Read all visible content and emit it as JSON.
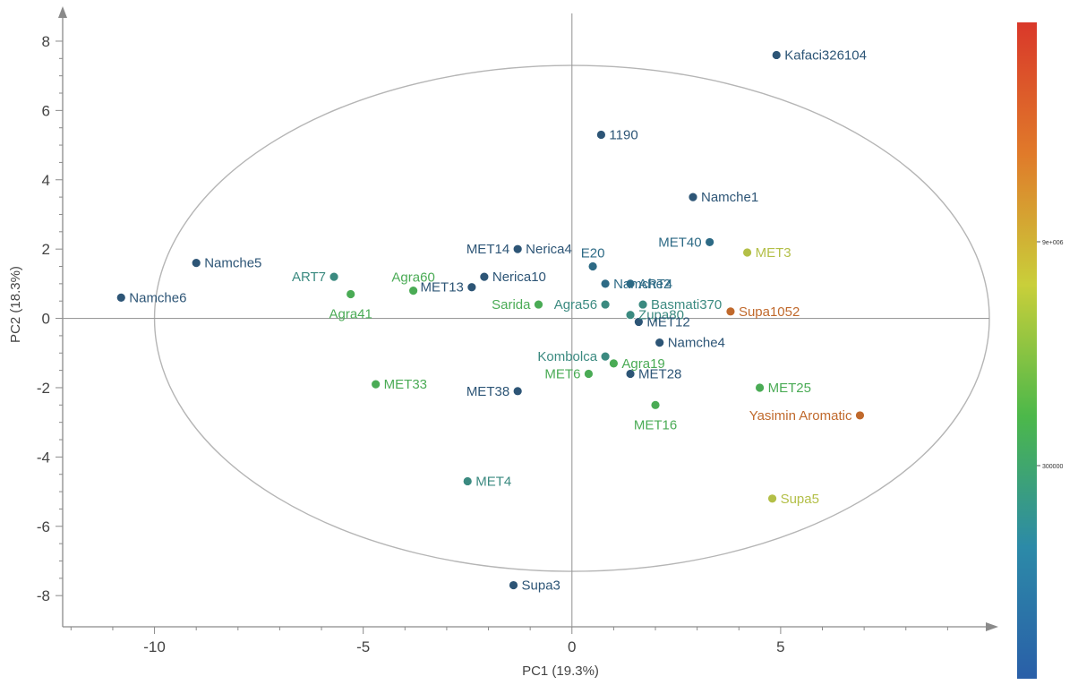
{
  "chart_data": {
    "type": "scatter",
    "xlabel": "PC1 (19.3%)",
    "ylabel": "PC2 (18.3%)",
    "xlim": [
      -12.2,
      10
    ],
    "ylim": [
      -8.9,
      8.8
    ],
    "xticks": [
      -10,
      -5,
      0,
      5
    ],
    "yticks": [
      -8,
      -6,
      -4,
      -2,
      0,
      2,
      4,
      6,
      8
    ],
    "x_tick_labels": [
      "-10",
      "-5",
      "0",
      "5"
    ],
    "y_tick_labels": [
      "-8",
      "-6",
      "-4",
      "-2",
      "0",
      "2",
      "4",
      "6",
      "8"
    ],
    "reference_lines": {
      "x": 0,
      "y": 0
    },
    "ellipse": {
      "center": [
        0,
        0
      ],
      "rx": 10.0,
      "ry": 7.3
    },
    "colorbar": {
      "colors_top_to_bottom": [
        "#d9382a",
        "#e07a2a",
        "#c9cf3a",
        "#4cb84a",
        "#2c8aa8",
        "#2a5fa8"
      ],
      "tick_labels": [
        "9e+006",
        "300000"
      ]
    },
    "points": [
      {
        "label": "Kafaci326104",
        "x": 4.9,
        "y": 7.6,
        "color": "#2d5576"
      },
      {
        "label": "1190",
        "x": 0.7,
        "y": 5.3,
        "color": "#2d5576"
      },
      {
        "label": "Namche1",
        "x": 2.9,
        "y": 3.5,
        "color": "#2d5576"
      },
      {
        "label": "MET40",
        "x": 3.3,
        "y": 2.2,
        "color": "#2d6a85"
      },
      {
        "label": "MET3",
        "x": 4.2,
        "y": 1.9,
        "color": "#b3bf47"
      },
      {
        "label": "Namche5",
        "x": -9.0,
        "y": 1.6,
        "color": "#2d5576"
      },
      {
        "label": "Namche6",
        "x": -10.8,
        "y": 0.6,
        "color": "#2d5576"
      },
      {
        "label": "ART7",
        "x": -5.7,
        "y": 1.2,
        "color": "#3b8a80"
      },
      {
        "label": "Agra60",
        "x": -3.8,
        "y": 0.8,
        "color": "#4aab55"
      },
      {
        "label": "Agra41",
        "x": -5.3,
        "y": 0.7,
        "color": "#4aab55"
      },
      {
        "label": "MET14",
        "x": -1.3,
        "y": 2.0,
        "color": "#2d5576"
      },
      {
        "label": "Nerica4",
        "x": -1.3,
        "y": 2.0,
        "color": "#2d5576"
      },
      {
        "label": "Nerica10",
        "x": -2.1,
        "y": 1.2,
        "color": "#2d5576"
      },
      {
        "label": "MET13",
        "x": -2.4,
        "y": 0.9,
        "color": "#2d5576"
      },
      {
        "label": "E20",
        "x": 0.5,
        "y": 1.5,
        "color": "#2d6a85"
      },
      {
        "label": "Namche2",
        "x": 0.8,
        "y": 1.0,
        "color": "#2d6a85"
      },
      {
        "label": "ART4",
        "x": 1.4,
        "y": 1.0,
        "color": "#2d6a85"
      },
      {
        "label": "Basmati370",
        "x": 1.7,
        "y": 0.4,
        "color": "#3b8a80"
      },
      {
        "label": "Sarida",
        "x": -0.8,
        "y": 0.4,
        "color": "#4aab55"
      },
      {
        "label": "Agra56",
        "x": 0.8,
        "y": 0.4,
        "color": "#3b8a80"
      },
      {
        "label": "Zupa80",
        "x": 1.4,
        "y": 0.1,
        "color": "#3b8a80"
      },
      {
        "label": "MET12",
        "x": 1.6,
        "y": -0.1,
        "color": "#2d5576"
      },
      {
        "label": "Supa1052",
        "x": 3.8,
        "y": 0.2,
        "color": "#c0692c"
      },
      {
        "label": "Namche4",
        "x": 2.1,
        "y": -0.7,
        "color": "#2d5576"
      },
      {
        "label": "Kombolca",
        "x": 0.8,
        "y": -1.1,
        "color": "#3b8a80"
      },
      {
        "label": "MET28",
        "x": 1.4,
        "y": -1.6,
        "color": "#2d5576"
      },
      {
        "label": "Agra19",
        "x": 1.0,
        "y": -1.3,
        "color": "#4aab55"
      },
      {
        "label": "MET6",
        "x": 0.4,
        "y": -1.6,
        "color": "#4aab55"
      },
      {
        "label": "MET33",
        "x": -4.7,
        "y": -1.9,
        "color": "#4aab55"
      },
      {
        "label": "MET38",
        "x": -1.3,
        "y": -2.1,
        "color": "#2d5576"
      },
      {
        "label": "MET16",
        "x": 2.0,
        "y": -2.5,
        "color": "#4aab55"
      },
      {
        "label": "MET25",
        "x": 4.5,
        "y": -2.0,
        "color": "#4aab55"
      },
      {
        "label": "Yasimin Aromatic",
        "x": 6.9,
        "y": -2.8,
        "color": "#c0692c"
      },
      {
        "label": "MET4",
        "x": -2.5,
        "y": -4.7,
        "color": "#3b8a80"
      },
      {
        "label": "Supa5",
        "x": 4.8,
        "y": -5.2,
        "color": "#b3bf47"
      },
      {
        "label": "Supa3",
        "x": -1.4,
        "y": -7.7,
        "color": "#2d5576"
      }
    ]
  }
}
